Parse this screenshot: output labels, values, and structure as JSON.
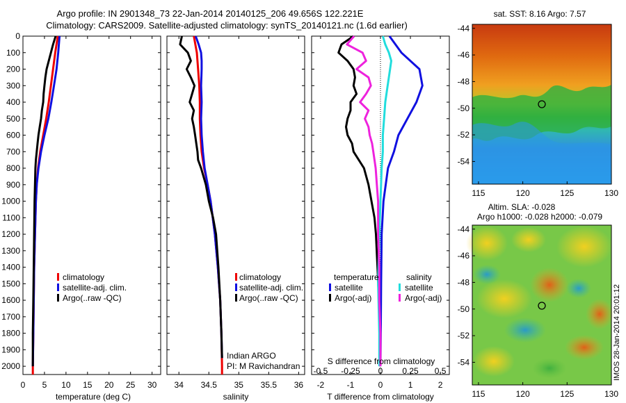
{
  "title": {
    "line1": "Argo profile: IN 2901348_73 22-Jan-2014 20140125_206 49.656S 122.221E",
    "line2": "Climatology: CARS2009. Satellite-adjusted climatology: synTS_20140121.nc (1.6d earlier)"
  },
  "colors": {
    "climatology": "#ee0000",
    "satellite": "#1010e0",
    "argo": "#000000",
    "sal_satellite": "#22dddd",
    "sal_argo": "#ee22dd"
  },
  "depth_ticks": [
    "0",
    "100",
    "200",
    "300",
    "400",
    "500",
    "600",
    "700",
    "800",
    "900",
    "1000",
    "1100",
    "1200",
    "1300",
    "1400",
    "1500",
    "1600",
    "1700",
    "1800",
    "1900",
    "2000"
  ],
  "temp_panel": {
    "xlabel": "temperature (deg C)",
    "xticks": [
      "0",
      "5",
      "10",
      "15",
      "20",
      "25",
      "30"
    ],
    "legend": [
      "climatology",
      "satellite-adj. clim.",
      "Argo(..raw -QC)"
    ]
  },
  "sal_panel": {
    "xlabel": "salinity",
    "xticks": [
      "34",
      "34.5",
      "35",
      "35.5",
      "36"
    ],
    "legend": [
      "climatology",
      "satellite-adj. clim.",
      "Argo(..raw -QC)"
    ],
    "note1": "Indian ARGO",
    "note2": "PI: M Ravichandran"
  },
  "diff_panel": {
    "xlabel": "T difference from climatology",
    "xticks": [
      "-2",
      "-1",
      "0",
      "1",
      "2"
    ],
    "s_label": "S difference from climatology",
    "s_ticks": [
      "-0.5",
      "-0.25",
      "0",
      "0.25",
      "0.5"
    ],
    "legend_t_title": "temperature",
    "legend_s_title": "salinity",
    "legend_t": [
      "satellite",
      "Argo(-adj)"
    ],
    "legend_s": [
      "satellite",
      "Argo(-adj)"
    ]
  },
  "sst_map": {
    "title": "sat. SST: 8.16 Argo: 7.57",
    "xticks": [
      "115",
      "120",
      "125",
      "130"
    ],
    "yticks": [
      "-44",
      "-46",
      "-48",
      "-50",
      "-52",
      "-54"
    ]
  },
  "sla_map": {
    "title1": "Altim. SLA: -0.028",
    "title2": "Argo h1000: -0.028 h2000: -0.079",
    "xticks": [
      "115",
      "120",
      "125",
      "130"
    ],
    "yticks": [
      "-44",
      "-46",
      "-48",
      "-50",
      "-52",
      "-54"
    ],
    "side_label": "IMOS 28-Jan-2014 20:01:12"
  },
  "chart_data": [
    {
      "type": "line",
      "panel": "temperature",
      "xlim": [
        0,
        32
      ],
      "ylim": [
        2050,
        0
      ],
      "xlabel": "temperature (deg C)",
      "ylabel": "",
      "series": [
        {
          "name": "climatology",
          "depth": [
            0,
            100,
            200,
            300,
            400,
            500,
            600,
            700,
            800,
            900,
            1000,
            1200,
            1400,
            1600,
            1800,
            2000,
            2050
          ],
          "values": [
            8.1,
            7.5,
            7.0,
            6.5,
            6.0,
            5.4,
            4.7,
            4.0,
            3.5,
            3.2,
            3.0,
            2.8,
            2.6,
            2.5,
            2.4,
            2.3,
            2.3
          ]
        },
        {
          "name": "satellite-adj. clim.",
          "depth": [
            0,
            100,
            200,
            300,
            400,
            500,
            600,
            700,
            800,
            900,
            1000,
            1200,
            1400,
            1600,
            1800,
            2000
          ],
          "values": [
            8.5,
            8.2,
            7.8,
            7.2,
            6.6,
            5.9,
            5.0,
            4.2,
            3.6,
            3.2,
            3.0,
            2.8,
            2.6,
            2.5,
            2.4,
            2.3
          ]
        },
        {
          "name": "Argo(..raw -QC)",
          "depth": [
            0,
            50,
            100,
            150,
            200,
            250,
            300,
            350,
            400,
            450,
            500,
            550,
            600,
            650,
            700,
            750,
            800,
            900,
            1000,
            1200,
            1400,
            1600,
            1800,
            2000
          ],
          "values": [
            7.6,
            7.0,
            6.5,
            6.0,
            5.5,
            5.2,
            5.0,
            4.8,
            4.7,
            4.4,
            4.2,
            3.9,
            3.6,
            3.4,
            3.2,
            3.0,
            2.9,
            2.8,
            2.7,
            2.6,
            2.5,
            2.4,
            2.3,
            2.3
          ]
        }
      ]
    },
    {
      "type": "line",
      "panel": "salinity",
      "xlim": [
        33.8,
        36.1
      ],
      "ylim": [
        2050,
        0
      ],
      "xlabel": "salinity",
      "ylabel": "",
      "series": [
        {
          "name": "climatology",
          "depth": [
            0,
            100,
            200,
            300,
            400,
            500,
            600,
            700,
            800,
            900,
            1000,
            1200,
            1400,
            1600,
            1800,
            2000,
            2050
          ],
          "values": [
            34.25,
            34.3,
            34.32,
            34.34,
            34.35,
            34.35,
            34.36,
            34.38,
            34.42,
            34.48,
            34.53,
            34.6,
            34.65,
            34.69,
            34.71,
            34.72,
            34.72
          ]
        },
        {
          "name": "satellite-adj. clim.",
          "depth": [
            0,
            50,
            100,
            150,
            200,
            300,
            400,
            500,
            600,
            700,
            800,
            900,
            1000,
            1200,
            1400,
            1600,
            1800,
            1950
          ],
          "values": [
            34.28,
            34.33,
            34.37,
            34.38,
            34.38,
            34.37,
            34.38,
            34.37,
            34.38,
            34.4,
            34.43,
            34.48,
            34.53,
            34.6,
            34.65,
            34.69,
            34.71,
            34.72
          ]
        },
        {
          "name": "Argo(..raw -QC)",
          "depth": [
            0,
            50,
            100,
            150,
            200,
            250,
            300,
            350,
            400,
            450,
            500,
            550,
            600,
            650,
            700,
            750,
            800,
            900,
            1000,
            1100,
            1200,
            1400,
            1600,
            1800,
            1950
          ],
          "values": [
            34.05,
            34.02,
            34.15,
            34.2,
            34.13,
            34.2,
            34.26,
            34.22,
            34.18,
            34.25,
            34.22,
            34.25,
            34.27,
            34.29,
            34.31,
            34.32,
            34.37,
            34.45,
            34.5,
            34.57,
            34.62,
            34.66,
            34.69,
            34.71,
            34.72
          ]
        }
      ]
    },
    {
      "type": "line",
      "panel": "difference",
      "xlim": [
        -2.3,
        2.3
      ],
      "ylim": [
        2050,
        0
      ],
      "xlabel": "T difference from climatology",
      "ylabel": "",
      "series": [
        {
          "name": "temperature satellite",
          "depth": [
            0,
            100,
            200,
            300,
            400,
            500,
            600,
            700,
            800,
            1000,
            1200,
            1500,
            1800,
            2000
          ],
          "values": [
            0.3,
            0.7,
            1.3,
            1.4,
            1.2,
            0.9,
            0.6,
            0.45,
            0.25,
            0.1,
            0.04,
            0.02,
            0.01,
            0.0
          ]
        },
        {
          "name": "temperature Argo(-adj)",
          "depth": [
            0,
            50,
            100,
            150,
            200,
            250,
            300,
            350,
            400,
            450,
            500,
            550,
            600,
            650,
            700,
            800,
            900,
            1000,
            1100,
            1200,
            1400,
            1600,
            1800,
            2000
          ],
          "values": [
            -0.9,
            -1.3,
            -1.4,
            -1.1,
            -0.9,
            -0.85,
            -0.9,
            -0.8,
            -1.0,
            -1.0,
            -1.1,
            -1.15,
            -1.1,
            -0.95,
            -0.9,
            -0.55,
            -0.4,
            -0.3,
            -0.2,
            -0.15,
            -0.1,
            -0.05,
            -0.03,
            -0.02
          ]
        },
        {
          "name": "salinity satellite",
          "depth": [
            0,
            50,
            100,
            150,
            200,
            300,
            400,
            500,
            600,
            700,
            800,
            1000,
            1200,
            1500,
            1800,
            2000
          ],
          "values": [
            0.02,
            0.04,
            0.07,
            0.09,
            0.08,
            0.06,
            0.04,
            0.03,
            0.02,
            0.02,
            0.01,
            0.0,
            -0.01,
            -0.02,
            -0.01,
            -0.01
          ]
        },
        {
          "name": "salinity Argo(-adj)",
          "depth": [
            0,
            50,
            100,
            150,
            200,
            250,
            300,
            350,
            400,
            450,
            500,
            550,
            600,
            650,
            700,
            800,
            900,
            1000,
            1200,
            1400,
            1600,
            1800,
            2000
          ],
          "values": [
            -0.22,
            -0.28,
            -0.15,
            -0.12,
            -0.2,
            -0.1,
            -0.08,
            -0.12,
            -0.17,
            -0.1,
            -0.13,
            -0.1,
            -0.09,
            -0.07,
            -0.06,
            -0.04,
            -0.03,
            -0.02,
            -0.02,
            -0.01,
            -0.01,
            0.0,
            0.0
          ]
        }
      ]
    }
  ]
}
